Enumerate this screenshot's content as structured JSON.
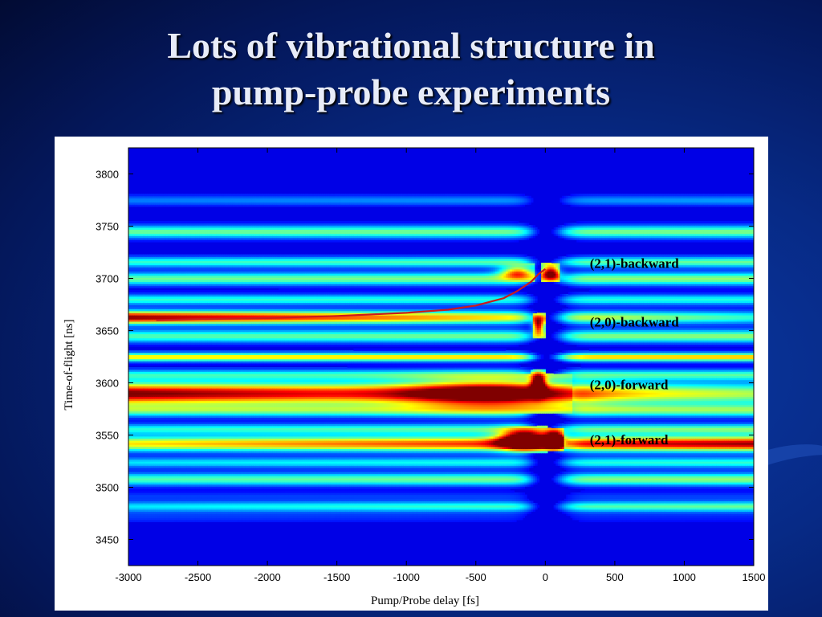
{
  "slide": {
    "title_line1": "Lots of vibrational structure in",
    "title_line2": "pump-probe experiments"
  },
  "chart_data": {
    "type": "heatmap",
    "xlabel": "Pump/Probe delay [fs]",
    "ylabel": "Time-of-flight [ns]",
    "xlim": [
      -3000,
      1500
    ],
    "ylim": [
      3425,
      3825
    ],
    "xticks": [
      -3000,
      -2500,
      -2000,
      -1500,
      -1000,
      -500,
      0,
      500,
      1000,
      1500
    ],
    "yticks": [
      3450,
      3500,
      3550,
      3600,
      3650,
      3700,
      3750,
      3800
    ],
    "colormap": "jet",
    "annotations": [
      {
        "text": "(2,1)-backward",
        "x": 320,
        "y": 3710
      },
      {
        "text": "(2,0)-backward",
        "x": 320,
        "y": 3654
      },
      {
        "text": "(2,0)-forward",
        "x": 320,
        "y": 3594
      },
      {
        "text": "(2,1)-forward",
        "x": 320,
        "y": 3541
      }
    ],
    "fit_curve": {
      "color": "#cc1b1b",
      "x": [
        -2800,
        -2500,
        -2000,
        -1500,
        -1000,
        -700,
        -500,
        -300,
        -200,
        -100,
        -50,
        0
      ],
      "y": [
        3660,
        3661,
        3662,
        3664,
        3667,
        3670,
        3674,
        3681,
        3688,
        3697,
        3704,
        3709
      ]
    },
    "bands": [
      {
        "y": 3472,
        "i_left": 0.08,
        "i_right": 0.05,
        "w": 6
      },
      {
        "y": 3482,
        "i_left": 0.25,
        "i_right": 0.38,
        "w": 5
      },
      {
        "y": 3492,
        "i_left": 0.08,
        "i_right": 0.08,
        "w": 4
      },
      {
        "y": 3508,
        "i_left": 0.35,
        "i_right": 0.42,
        "w": 6
      },
      {
        "y": 3524,
        "i_left": 0.25,
        "i_right": 0.32,
        "w": 5
      },
      {
        "y": 3542,
        "i_left": 0.55,
        "i_right": 0.88,
        "w": 7
      },
      {
        "y": 3556,
        "i_left": 0.3,
        "i_right": 0.4,
        "w": 5
      },
      {
        "y": 3574,
        "i_left": 0.38,
        "i_right": 0.4,
        "w": 6
      },
      {
        "y": 3590,
        "i_left": 0.93,
        "i_right": 0.45,
        "w": 10
      },
      {
        "y": 3608,
        "i_left": 0.3,
        "i_right": 0.35,
        "w": 5
      },
      {
        "y": 3625,
        "i_left": 0.55,
        "i_right": 0.6,
        "w": 4
      },
      {
        "y": 3645,
        "i_left": 0.35,
        "i_right": 0.42,
        "w": 6
      },
      {
        "y": 3663,
        "i_left": 0.9,
        "i_right": 0.32,
        "w": 6
      },
      {
        "y": 3680,
        "i_left": 0.32,
        "i_right": 0.3,
        "w": 5
      },
      {
        "y": 3700,
        "i_left": 0.38,
        "i_right": 0.42,
        "w": 6
      },
      {
        "y": 3716,
        "i_left": 0.32,
        "i_right": 0.38,
        "w": 5
      },
      {
        "y": 3745,
        "i_left": 0.38,
        "i_right": 0.4,
        "w": 6
      },
      {
        "y": 3775,
        "i_left": 0.15,
        "i_right": 0.18,
        "w": 5
      }
    ],
    "features": [
      {
        "x": -150,
        "y": 3546,
        "i": 1.0,
        "rx": 170,
        "ry": 9
      },
      {
        "x": 70,
        "y": 3546,
        "i": 0.95,
        "rx": 70,
        "ry": 8
      },
      {
        "x": -50,
        "y": 3600,
        "i": 0.8,
        "rx": 50,
        "ry": 10
      },
      {
        "x": -50,
        "y": 3655,
        "i": 0.72,
        "rx": 45,
        "ry": 8
      },
      {
        "x": 40,
        "y": 3706,
        "i": 0.8,
        "rx": 70,
        "ry": 7
      },
      {
        "x": -400,
        "y": 3590,
        "i": 0.55,
        "rx": 600,
        "ry": 14
      },
      {
        "x": -200,
        "y": 3706,
        "i": 0.55,
        "rx": 120,
        "ry": 6
      }
    ],
    "dark_notch": {
      "x": 0,
      "halfwidth_left": 130,
      "halfwidth_right": 150
    }
  }
}
